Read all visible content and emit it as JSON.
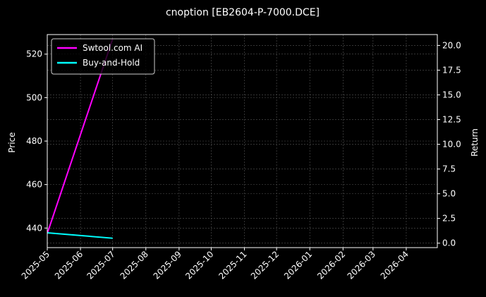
{
  "chart_data": {
    "type": "line",
    "title": "cnoption [EB2604-P-7000.DCE]",
    "ylabel_left": "Price",
    "ylabel_right": "Return",
    "ylim_left": [
      431.0,
      529.0
    ],
    "ylim_right": [
      -0.45,
      21.1
    ],
    "xlim": [
      "2025-05-01",
      "2026-04-30"
    ],
    "x_ticks": [
      "2025-05",
      "2025-06",
      "2025-07",
      "2025-08",
      "2025-09",
      "2025-10",
      "2025-11",
      "2025-12",
      "2026-01",
      "2026-02",
      "2026-03",
      "2026-04"
    ],
    "y_ticks_left": [
      440,
      460,
      480,
      500,
      520
    ],
    "y_ticks_right": [
      "0.0",
      "2.5",
      "5.0",
      "7.5",
      "10.0",
      "12.5",
      "15.0",
      "17.5",
      "20.0"
    ],
    "grid": true,
    "legend_position": "top-left",
    "series": [
      {
        "name": "Swtool.com AI",
        "color": "#ff00ff",
        "axis": "left",
        "points": [
          {
            "x": "2025-05-01",
            "y": 437.5
          },
          {
            "x": "2025-07-01",
            "y": 527.0
          }
        ]
      },
      {
        "name": "Buy-and-Hold",
        "color": "#00ffff",
        "axis": "right",
        "points": [
          {
            "x": "2025-05-01",
            "y": 1.05
          },
          {
            "x": "2025-07-01",
            "y": 0.5
          }
        ]
      }
    ],
    "colors": {
      "background": "#000000",
      "text": "#ffffff",
      "grid": "#555555",
      "legend_edge": "#cccccc"
    }
  }
}
